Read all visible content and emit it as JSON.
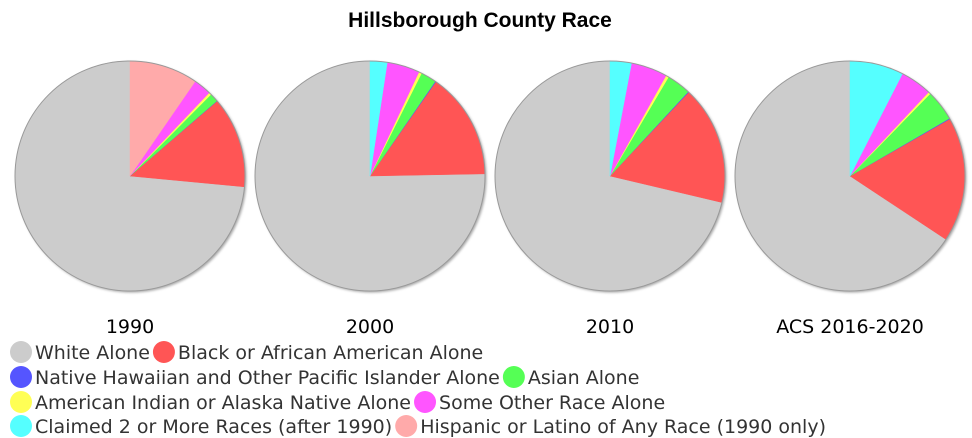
{
  "chart_data": {
    "type": "pie",
    "title": "Hillsborough County Race",
    "legend": [
      {
        "label": "White Alone",
        "color": "#cccccc"
      },
      {
        "label": "Black or African American Alone",
        "color": "#ff5555"
      },
      {
        "label": "Native Hawaiian and Other Pacific Islander Alone",
        "color": "#5555ff"
      },
      {
        "label": "Asian Alone",
        "color": "#55ff55"
      },
      {
        "label": "American Indian or Alaska Native Alone",
        "color": "#ffff55"
      },
      {
        "label": "Some Other Race Alone",
        "color": "#ff55ff"
      },
      {
        "label": "Claimed 2 or More Races (after 1990)",
        "color": "#55ffff"
      },
      {
        "label": "Hispanic or Latino of Any Race (1990 only)",
        "color": "#ffaaaa"
      }
    ],
    "legend_placement": "bottom-left",
    "pies": [
      {
        "label": "1990",
        "slices": [
          {
            "category": "White Alone",
            "value": 73.5
          },
          {
            "category": "Black or African American Alone",
            "value": 12.8
          },
          {
            "category": "Native Hawaiian and Other Pacific Islander Alone",
            "value": 0.05
          },
          {
            "category": "Asian Alone",
            "value": 1.2
          },
          {
            "category": "American Indian or Alaska Native Alone",
            "value": 0.35
          },
          {
            "category": "Some Other Race Alone",
            "value": 2.5
          },
          {
            "category": "Claimed 2 or More Races (after 1990)",
            "value": 0
          },
          {
            "category": "Hispanic or Latino of Any Race (1990 only)",
            "value": 9.6
          }
        ]
      },
      {
        "label": "2000",
        "slices": [
          {
            "category": "White Alone",
            "value": 75.3
          },
          {
            "category": "Black or African American Alone",
            "value": 15.0
          },
          {
            "category": "Native Hawaiian and Other Pacific Islander Alone",
            "value": 0.1
          },
          {
            "category": "Asian Alone",
            "value": 2.2
          },
          {
            "category": "American Indian or Alaska Native Alone",
            "value": 0.4
          },
          {
            "category": "Some Other Race Alone",
            "value": 4.6
          },
          {
            "category": "Claimed 2 or More Races (after 1990)",
            "value": 2.4
          },
          {
            "category": "Hispanic or Latino of Any Race (1990 only)",
            "value": 0
          }
        ]
      },
      {
        "label": "2010",
        "slices": [
          {
            "category": "White Alone",
            "value": 71.3
          },
          {
            "category": "Black or African American Alone",
            "value": 16.7
          },
          {
            "category": "Native Hawaiian and Other Pacific Islander Alone",
            "value": 0.1
          },
          {
            "category": "Asian Alone",
            "value": 3.4
          },
          {
            "category": "American Indian or Alaska Native Alone",
            "value": 0.4
          },
          {
            "category": "Some Other Race Alone",
            "value": 5.1
          },
          {
            "category": "Claimed 2 or More Races (after 1990)",
            "value": 3.0
          },
          {
            "category": "Hispanic or Latino of Any Race (1990 only)",
            "value": 0
          }
        ]
      },
      {
        "label": "ACS 2016-2020",
        "slices": [
          {
            "category": "White Alone",
            "value": 63.6
          },
          {
            "category": "Black or African American Alone",
            "value": 17.0
          },
          {
            "category": "Native Hawaiian and Other Pacific Islander Alone",
            "value": 0.1
          },
          {
            "category": "Asian Alone",
            "value": 4.2
          },
          {
            "category": "American Indian or Alaska Native Alone",
            "value": 0.3
          },
          {
            "category": "Some Other Race Alone",
            "value": 4.3
          },
          {
            "category": "Claimed 2 or More Races (after 1990)",
            "value": 7.3
          },
          {
            "category": "Hispanic or Latino of Any Race (1990 only)",
            "value": 0
          }
        ]
      }
    ]
  }
}
